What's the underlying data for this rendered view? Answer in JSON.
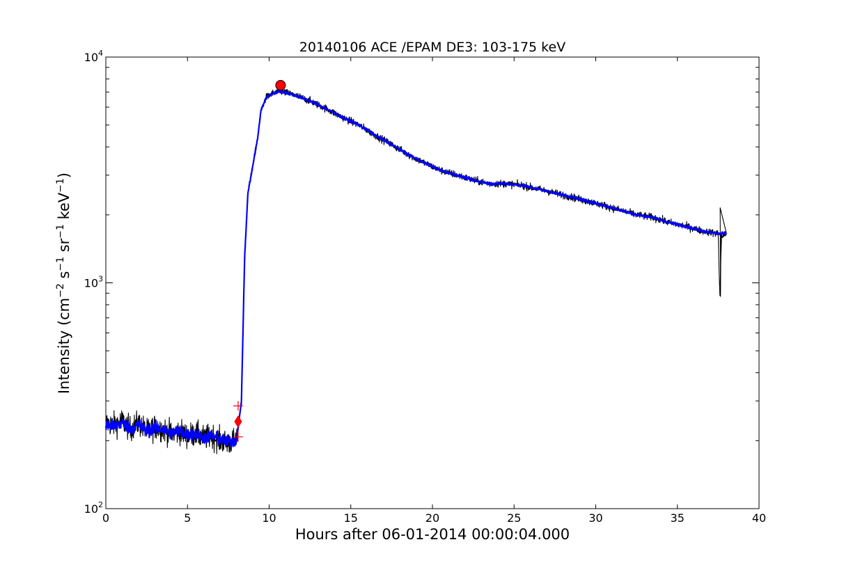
{
  "chart_data": {
    "type": "line",
    "title": "20140106 ACE /EPAM DE3: 103-175 keV",
    "xlabel": "Hours after 06-01-2014 00:00:04.000",
    "ylabel": "Intensity (cm⁻² s⁻¹ sr⁻¹ keV⁻¹)",
    "ylabel_parts": {
      "prefix": "Intensity (cm",
      "exp1": "−2",
      "s": " s",
      "exp2": "−1",
      "sr": " sr",
      "exp3": "−1",
      "kev": " keV",
      "exp4": "−1",
      "suffix": ")"
    },
    "xlim": [
      0,
      40
    ],
    "ylim": [
      100,
      10000
    ],
    "yscale": "log",
    "grid": false,
    "x_ticks": [
      0,
      5,
      10,
      15,
      20,
      25,
      30,
      35,
      40
    ],
    "x_tick_labels": [
      "0",
      "5",
      "10",
      "15",
      "20",
      "25",
      "30",
      "35",
      "40"
    ],
    "y_ticks": [
      100,
      1000,
      10000
    ],
    "y_tick_labels": [
      {
        "base": "10",
        "exp": "2"
      },
      {
        "base": "10",
        "exp": "3"
      },
      {
        "base": "10",
        "exp": "4"
      }
    ],
    "series": [
      {
        "name": "",
        "color": "#000000",
        "kind": "raw",
        "x": [
          0,
          0.5,
          1,
          1.5,
          2,
          2.5,
          3,
          3.5,
          4,
          4.5,
          5,
          5.5,
          6,
          6.5,
          7,
          7.5,
          8,
          8.1,
          8.3,
          8.5,
          8.7,
          9.0,
          9.3,
          9.5,
          9.8,
          10.2,
          10.7,
          11.5,
          12.5,
          13.5,
          14.5,
          15.5,
          16.5,
          17.5,
          18.5,
          19.5,
          20.5,
          21.5,
          22.5,
          23.5,
          24.5,
          25.5,
          26.5,
          27.5,
          28.5,
          29.5,
          30.5,
          31.5,
          32.5,
          33.5,
          34.5,
          35.5,
          36.5,
          37.5,
          37.6,
          37.7,
          38.0
        ],
        "y": [
          240,
          235,
          245,
          225,
          240,
          220,
          230,
          225,
          215,
          220,
          210,
          215,
          205,
          210,
          200,
          195,
          200,
          230,
          300,
          1300,
          2500,
          3300,
          4400,
          5800,
          6600,
          6900,
          7050,
          6800,
          6400,
          5900,
          5400,
          5000,
          4500,
          4100,
          3700,
          3400,
          3150,
          3000,
          2850,
          2750,
          2750,
          2700,
          2600,
          2500,
          2400,
          2300,
          2200,
          2100,
          2000,
          1950,
          1850,
          1780,
          1700,
          1650,
          870,
          1600,
          1650
        ]
      },
      {
        "name": "",
        "color": "#0000ff",
        "kind": "smoothed",
        "x": [
          0,
          0.5,
          1,
          1.5,
          2,
          2.5,
          3,
          3.5,
          4,
          4.5,
          5,
          5.5,
          6,
          6.5,
          7,
          7.5,
          8,
          8.1,
          8.3,
          8.5,
          8.7,
          9.0,
          9.3,
          9.5,
          9.8,
          10.2,
          10.7,
          11.5,
          12.5,
          13.5,
          14.5,
          15.5,
          16.5,
          17.5,
          18.5,
          19.5,
          20.5,
          21.5,
          22.5,
          23.5,
          24.5,
          25.5,
          26.5,
          27.5,
          28.5,
          29.5,
          30.5,
          31.5,
          32.5,
          33.5,
          34.5,
          35.5,
          36.5,
          37.5,
          38.0
        ],
        "y": [
          235,
          232,
          240,
          225,
          236,
          220,
          228,
          224,
          216,
          220,
          212,
          214,
          206,
          210,
          202,
          198,
          200,
          228,
          295,
          1300,
          2500,
          3300,
          4400,
          5800,
          6600,
          6900,
          7050,
          6800,
          6400,
          5900,
          5400,
          5000,
          4500,
          4100,
          3700,
          3400,
          3150,
          3000,
          2850,
          2750,
          2750,
          2700,
          2600,
          2500,
          2400,
          2300,
          2200,
          2100,
          2000,
          1950,
          1850,
          1780,
          1700,
          1650,
          1660
        ]
      }
    ],
    "markers": [
      {
        "shape": "circle",
        "color": "#ff0000",
        "x": 10.7,
        "y": 7500
      },
      {
        "shape": "diamond",
        "color": "#ff0000",
        "x": 8.1,
        "y": 243
      },
      {
        "shape": "plus",
        "color": "#ff0000",
        "x": 8.1,
        "y": 285
      },
      {
        "shape": "plus",
        "color": "#ff0000",
        "x": 8.1,
        "y": 208
      }
    ]
  }
}
